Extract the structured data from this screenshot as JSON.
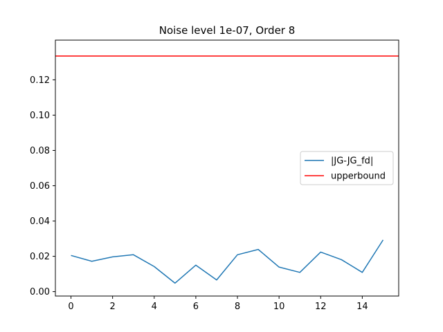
{
  "chart_data": {
    "type": "line",
    "title": "Noise level 1e-07, Order 8",
    "xlabel": "",
    "ylabel": "",
    "xlim": [
      -0.75,
      15.75
    ],
    "ylim": [
      -0.0025,
      0.1425
    ],
    "xticks": [
      0,
      2,
      4,
      6,
      8,
      10,
      12,
      14
    ],
    "xtick_labels": [
      "0",
      "2",
      "4",
      "6",
      "8",
      "10",
      "12",
      "14"
    ],
    "yticks": [
      0.0,
      0.02,
      0.04,
      0.06,
      0.08,
      0.1,
      0.12
    ],
    "ytick_labels": [
      "0.00",
      "0.02",
      "0.04",
      "0.06",
      "0.08",
      "0.10",
      "0.12"
    ],
    "grid": false,
    "legend_position": "center-right",
    "series": [
      {
        "name": "|JG-JG_fd|",
        "kind": "line",
        "color": "#1f77b4",
        "x": [
          0,
          1,
          2,
          3,
          4,
          5,
          6,
          7,
          8,
          9,
          10,
          11,
          12,
          13,
          14,
          15
        ],
        "y": [
          0.0205,
          0.0172,
          0.0197,
          0.0209,
          0.0142,
          0.0048,
          0.015,
          0.0066,
          0.0209,
          0.0239,
          0.0139,
          0.0109,
          0.0224,
          0.0181,
          0.0109,
          0.0293
        ]
      },
      {
        "name": "upperbound",
        "kind": "hline",
        "color": "#ff0000",
        "y": 0.1335
      }
    ]
  }
}
